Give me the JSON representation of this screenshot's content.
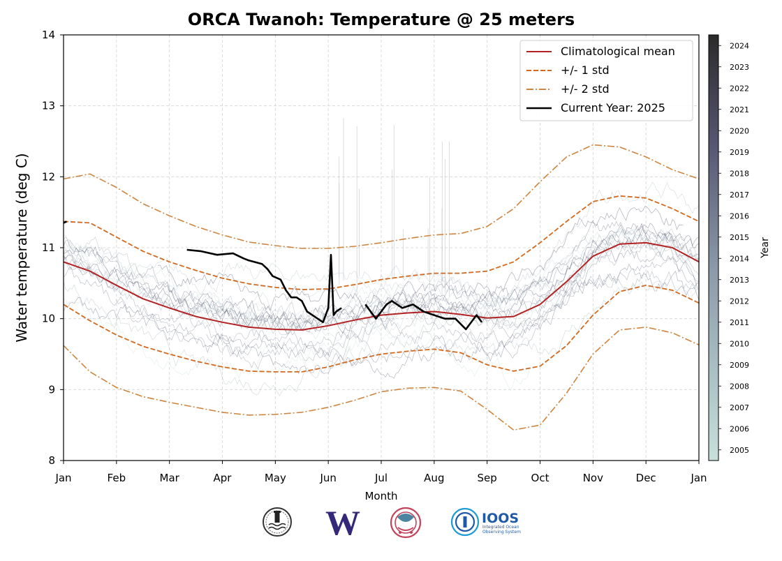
{
  "chart_data": {
    "type": "line",
    "title": "ORCA Twanoh: Temperature @ 25 meters",
    "xlabel": "Month",
    "ylabel": "Water temperature (deg C)",
    "xlim": [
      0,
      12
    ],
    "ylim": [
      8,
      14
    ],
    "grid": true,
    "x_ticks": [
      "Jan",
      "Feb",
      "Mar",
      "Apr",
      "May",
      "Jun",
      "Jul",
      "Aug",
      "Sep",
      "Oct",
      "Nov",
      "Dec",
      "Jan"
    ],
    "y_ticks": [
      8,
      9,
      10,
      11,
      12,
      13,
      14
    ],
    "legend": {
      "position": "top-right",
      "entries": [
        {
          "label": "Climatological mean",
          "color": "#b22222",
          "style": "solid"
        },
        {
          "label": "+/- 1 std",
          "color": "#d2691e",
          "style": "dashed"
        },
        {
          "label": "+/- 2 std",
          "color": "#cd853f",
          "style": "dashdot"
        },
        {
          "label": "Current Year: 2025",
          "color": "#000000",
          "style": "solid"
        }
      ]
    },
    "colorbar": {
      "label": "Year",
      "ticks": [
        "2005",
        "2006",
        "2007",
        "2008",
        "2009",
        "2010",
        "2011",
        "2012",
        "2013",
        "2014",
        "2015",
        "2016",
        "2017",
        "2018",
        "2019",
        "2020",
        "2021",
        "2022",
        "2023",
        "2024"
      ],
      "color_start": "#c9dfdb",
      "color_end": "#2b2b2b"
    },
    "series": [
      {
        "name": "Climatological mean",
        "color": "#b22222",
        "x": [
          0,
          0.5,
          1,
          1.5,
          2,
          2.5,
          3,
          3.5,
          4,
          4.5,
          5,
          5.5,
          6,
          6.5,
          7,
          7.5,
          8,
          8.5,
          9,
          9.5,
          10,
          10.5,
          11,
          11.5,
          12
        ],
        "y": [
          10.8,
          10.67,
          10.47,
          10.28,
          10.15,
          10.03,
          9.95,
          9.88,
          9.85,
          9.84,
          9.9,
          9.98,
          10.05,
          10.08,
          10.1,
          10.06,
          10.01,
          10.03,
          10.2,
          10.52,
          10.88,
          11.05,
          11.07,
          11.0,
          10.8
        ]
      },
      {
        "name": "+1 std",
        "color": "#d2691e",
        "x": [
          0,
          0.5,
          1,
          1.5,
          2,
          2.5,
          3,
          3.5,
          4,
          4.5,
          5,
          5.5,
          6,
          6.5,
          7,
          7.5,
          8,
          8.5,
          9,
          9.5,
          10,
          10.5,
          11,
          11.5,
          12
        ],
        "y": [
          11.37,
          11.35,
          11.15,
          10.95,
          10.8,
          10.68,
          10.57,
          10.49,
          10.44,
          10.41,
          10.42,
          10.48,
          10.55,
          10.6,
          10.64,
          10.64,
          10.67,
          10.8,
          11.07,
          11.37,
          11.65,
          11.73,
          11.7,
          11.55,
          11.37
        ]
      },
      {
        "name": "-1 std",
        "color": "#d2691e",
        "x": [
          0,
          0.5,
          1,
          1.5,
          2,
          2.5,
          3,
          3.5,
          4,
          4.5,
          5,
          5.5,
          6,
          6.5,
          7,
          7.5,
          8,
          8.5,
          9,
          9.5,
          10,
          10.5,
          11,
          11.5,
          12
        ],
        "y": [
          10.2,
          9.97,
          9.77,
          9.61,
          9.5,
          9.4,
          9.32,
          9.26,
          9.25,
          9.25,
          9.32,
          9.42,
          9.5,
          9.54,
          9.57,
          9.52,
          9.35,
          9.26,
          9.33,
          9.62,
          10.05,
          10.38,
          10.47,
          10.4,
          10.22
        ]
      },
      {
        "name": "+2 std",
        "color": "#cd853f",
        "x": [
          0,
          0.5,
          1,
          1.5,
          2,
          2.5,
          3,
          3.5,
          4,
          4.5,
          5,
          5.5,
          6,
          6.5,
          7,
          7.5,
          8,
          8.5,
          9,
          9.5,
          10,
          10.5,
          11,
          11.5,
          12
        ],
        "y": [
          11.97,
          12.04,
          11.85,
          11.62,
          11.45,
          11.3,
          11.18,
          11.08,
          11.03,
          10.99,
          10.99,
          11.02,
          11.07,
          11.13,
          11.18,
          11.2,
          11.3,
          11.55,
          11.93,
          12.28,
          12.45,
          12.42,
          12.28,
          12.1,
          11.97
        ]
      },
      {
        "name": "-2 std",
        "color": "#cd853f",
        "x": [
          0,
          0.5,
          1,
          1.5,
          2,
          2.5,
          3,
          3.5,
          4,
          4.5,
          5,
          5.5,
          6,
          6.5,
          7,
          7.5,
          8,
          8.5,
          9,
          9.5,
          10,
          10.5,
          11,
          11.5,
          12
        ],
        "y": [
          9.62,
          9.25,
          9.03,
          8.9,
          8.82,
          8.75,
          8.68,
          8.64,
          8.65,
          8.68,
          8.75,
          8.85,
          8.97,
          9.02,
          9.03,
          8.98,
          8.72,
          8.43,
          8.5,
          8.95,
          9.5,
          9.84,
          9.88,
          9.8,
          9.63
        ]
      },
      {
        "name": "Current Year: 2025",
        "color": "#000000",
        "x": [
          0,
          0.06,
          2.33,
          2.6,
          2.9,
          3.2,
          3.4,
          3.5,
          3.6,
          3.75,
          3.85,
          3.95,
          4.1,
          4.2,
          4.3,
          4.4,
          4.5,
          4.6,
          4.7,
          4.8,
          4.9,
          5.0,
          5.05,
          5.1,
          5.15,
          5.25,
          5.7,
          5.9,
          6.0,
          6.1,
          6.2,
          6.4,
          6.6,
          6.8,
          7.0,
          7.2,
          7.4,
          7.6,
          7.8,
          7.9
        ],
        "y": [
          11.35,
          11.37,
          10.97,
          10.95,
          10.9,
          10.92,
          10.85,
          10.82,
          10.8,
          10.77,
          10.7,
          10.6,
          10.55,
          10.4,
          10.3,
          10.3,
          10.25,
          10.1,
          10.05,
          10.0,
          9.95,
          10.15,
          10.9,
          10.05,
          10.1,
          10.15,
          10.2,
          10.0,
          10.1,
          10.2,
          10.25,
          10.15,
          10.2,
          10.1,
          10.05,
          10.0,
          10.0,
          9.85,
          10.05,
          9.95
        ]
      }
    ]
  },
  "footer": {
    "logos": [
      {
        "icon": "lighthouse-seal-icon",
        "color": "#333333"
      },
      {
        "icon": "uw-w-logo-icon",
        "color": "#33287a",
        "text": "W"
      },
      {
        "icon": "salmon-seal-icon",
        "color": "#c2425a"
      },
      {
        "icon": "ioos-logo-icon",
        "color": "#1e5aa8",
        "text": "IOOS",
        "sub1": "Integrated Ocean",
        "sub2": "Observing System"
      }
    ]
  }
}
